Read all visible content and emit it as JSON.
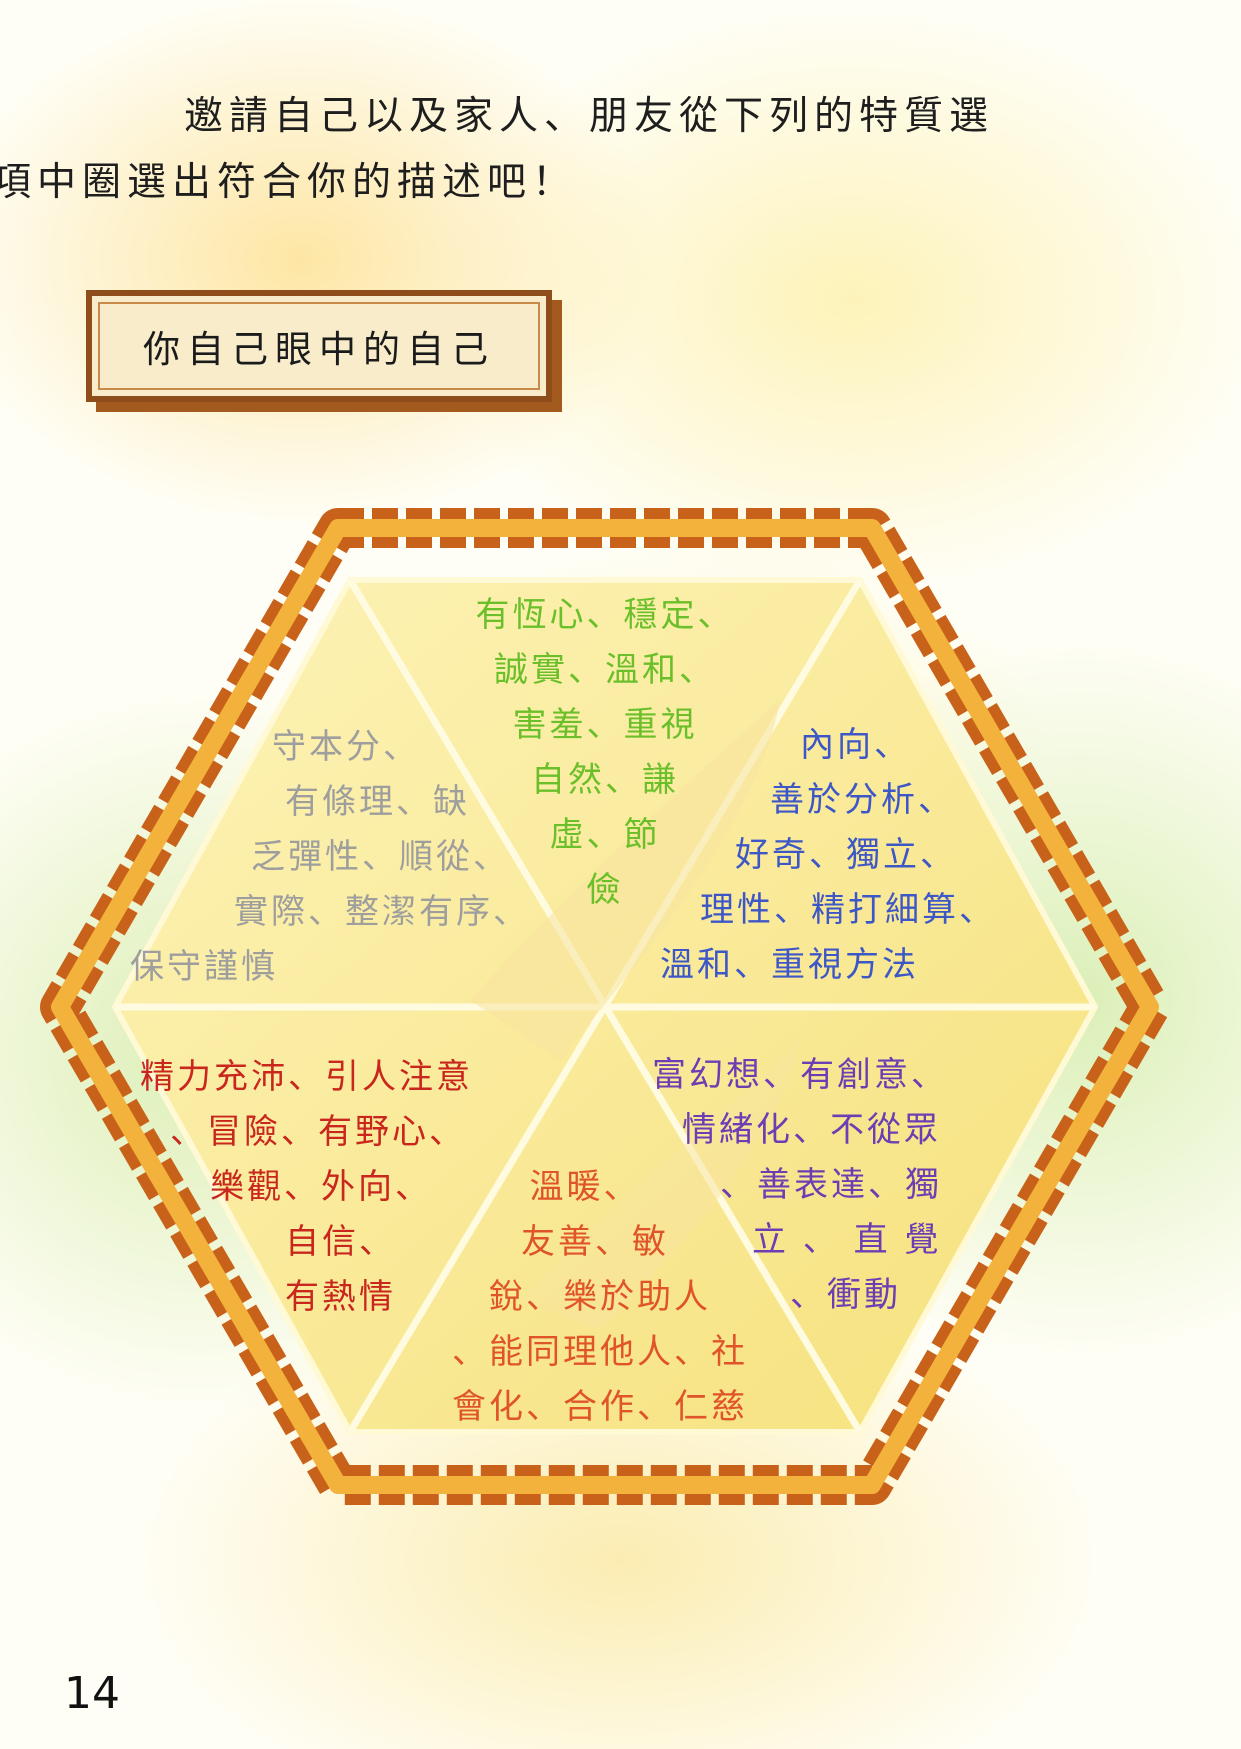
{
  "intro": {
    "line1": "邀請自己以及家人、朋友從下列的特質選",
    "line2": "項中圈選出符合你的描述吧！"
  },
  "section_title": "你自己眼中的自己",
  "hexagon": {
    "frame_colors": {
      "outer": "#c8621b",
      "inner": "#f3b23b",
      "fill": "#fbeea0"
    },
    "cells": {
      "top": {
        "color": "#6bbf2a",
        "lines": [
          "有恆心、穩定、",
          "誠實、溫和、",
          "害羞、重視",
          "自然、謙",
          "虛、節",
          "儉"
        ]
      },
      "upper_left": {
        "color": "#9e9e9e",
        "lines": [
          "守本分、",
          "有條理、缺",
          "乏彈性、順從、",
          "實際、整潔有序、",
          "保守謹慎"
        ]
      },
      "upper_right": {
        "color": "#3d57c7",
        "lines": [
          "內向、",
          "善於分析、",
          "好奇、獨立、",
          "理性、精打細算、",
          "溫和、重視方法"
        ]
      },
      "lower_left": {
        "color": "#c9261e",
        "lines": [
          "精力充沛、引人注意",
          "、冒險、有野心、",
          "樂觀、外向、",
          "自信、",
          "有熱情"
        ]
      },
      "lower_right": {
        "color": "#6b3fb3",
        "lines": [
          "富幻想、有創意、",
          "情緒化、不從眾",
          "、善表達、獨",
          "立 、 直 覺",
          "、衝動"
        ]
      },
      "bottom": {
        "color": "#e0542a",
        "lines": [
          "溫暖、",
          "友善、敏",
          "銳、樂於助人",
          "、能同理他人、社",
          "會化、合作、仁慈"
        ]
      }
    }
  },
  "page_number": "14"
}
